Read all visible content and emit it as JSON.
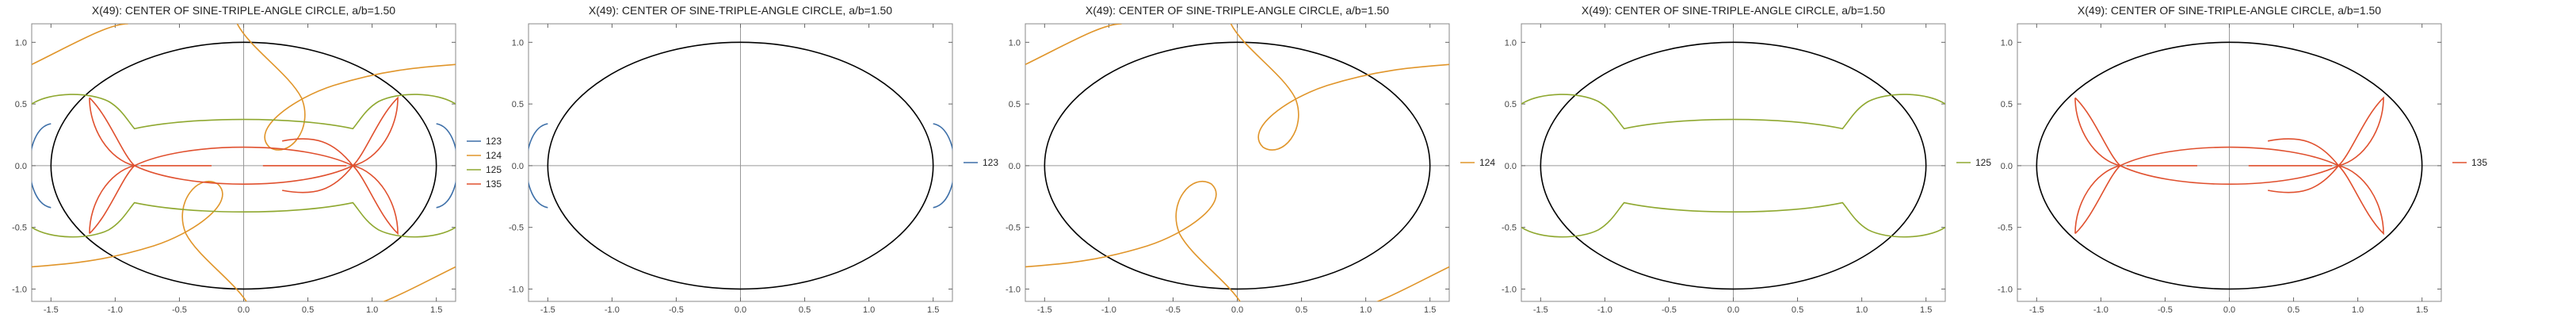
{
  "chart_data": [
    {
      "type": "line",
      "title": "X(49): CENTER OF SINE-TRIPLE-ANGLE CIRCLE, a/b=1.50",
      "xlim": [
        -1.65,
        1.65
      ],
      "ylim": [
        -1.1,
        1.15
      ],
      "xticks": [
        -1.5,
        -1.0,
        -0.5,
        0.0,
        0.5,
        1.0,
        1.5
      ],
      "xtick_labels": [
        "-1.5",
        "-1.0",
        "-0.5",
        "0.0",
        "0.5",
        "1.0",
        "1.5"
      ],
      "yticks": [
        -1.0,
        -0.5,
        0.0,
        0.5,
        1.0
      ],
      "ytick_labels": [
        "-1.0",
        "-0.5",
        "0.0",
        "0.5",
        "1.0"
      ],
      "ellipse": {
        "a": 1.5,
        "b": 1.0,
        "color": "#000000"
      },
      "legend_position": "right",
      "series": [
        {
          "name": "123",
          "color": "#3d6fa8"
        },
        {
          "name": "124",
          "color": "#e0952a"
        },
        {
          "name": "125",
          "color": "#8fa830"
        },
        {
          "name": "135",
          "color": "#e0502e"
        }
      ]
    },
    {
      "type": "line",
      "title": "X(49): CENTER OF SINE-TRIPLE-ANGLE CIRCLE, a/b=1.50",
      "xlim": [
        -1.65,
        1.65
      ],
      "ylim": [
        -1.1,
        1.15
      ],
      "xticks": [
        -1.5,
        -1.0,
        -0.5,
        0.0,
        0.5,
        1.0,
        1.5
      ],
      "xtick_labels": [
        "-1.5",
        "-1.0",
        "-0.5",
        "0.0",
        "0.5",
        "1.0",
        "1.5"
      ],
      "yticks": [
        -1.0,
        -0.5,
        0.0,
        0.5,
        1.0
      ],
      "ytick_labels": [
        "-1.0",
        "-0.5",
        "0.0",
        "0.5",
        "1.0"
      ],
      "ellipse": {
        "a": 1.5,
        "b": 1.0,
        "color": "#000000"
      },
      "legend_position": "right",
      "series": [
        {
          "name": "123",
          "color": "#3d6fa8"
        }
      ]
    },
    {
      "type": "line",
      "title": "X(49): CENTER OF SINE-TRIPLE-ANGLE CIRCLE, a/b=1.50",
      "xlim": [
        -1.65,
        1.65
      ],
      "ylim": [
        -1.1,
        1.15
      ],
      "xticks": [
        -1.5,
        -1.0,
        -0.5,
        0.0,
        0.5,
        1.0,
        1.5
      ],
      "xtick_labels": [
        "-1.5",
        "-1.0",
        "-0.5",
        "0.0",
        "0.5",
        "1.0",
        "1.5"
      ],
      "yticks": [
        -1.0,
        -0.5,
        0.0,
        0.5,
        1.0
      ],
      "ytick_labels": [
        "-1.0",
        "-0.5",
        "0.0",
        "0.5",
        "1.0"
      ],
      "ellipse": {
        "a": 1.5,
        "b": 1.0,
        "color": "#000000"
      },
      "legend_position": "right",
      "series": [
        {
          "name": "124",
          "color": "#e0952a"
        }
      ]
    },
    {
      "type": "line",
      "title": "X(49): CENTER OF SINE-TRIPLE-ANGLE CIRCLE, a/b=1.50",
      "xlim": [
        -1.65,
        1.65
      ],
      "ylim": [
        -1.1,
        1.15
      ],
      "xticks": [
        -1.5,
        -1.0,
        -0.5,
        0.0,
        0.5,
        1.0,
        1.5
      ],
      "xtick_labels": [
        "-1.5",
        "-1.0",
        "-0.5",
        "0.0",
        "0.5",
        "1.0",
        "1.5"
      ],
      "yticks": [
        -1.0,
        -0.5,
        0.0,
        0.5,
        1.0
      ],
      "ytick_labels": [
        "-1.0",
        "-0.5",
        "0.0",
        "0.5",
        "1.0"
      ],
      "ellipse": {
        "a": 1.5,
        "b": 1.0,
        "color": "#000000"
      },
      "legend_position": "right",
      "series": [
        {
          "name": "125",
          "color": "#8fa830"
        }
      ]
    },
    {
      "type": "line",
      "title": "X(49): CENTER OF SINE-TRIPLE-ANGLE CIRCLE, a/b=1.50",
      "xlim": [
        -1.65,
        1.65
      ],
      "ylim": [
        -1.1,
        1.15
      ],
      "xticks": [
        -1.5,
        -1.0,
        -0.5,
        0.0,
        0.5,
        1.0,
        1.5
      ],
      "xtick_labels": [
        "-1.5",
        "-1.0",
        "-0.5",
        "0.0",
        "0.5",
        "1.0",
        "1.5"
      ],
      "yticks": [
        -1.0,
        -0.5,
        0.0,
        0.5,
        1.0
      ],
      "ytick_labels": [
        "-1.0",
        "-0.5",
        "0.0",
        "0.5",
        "1.0"
      ],
      "ellipse": {
        "a": 1.5,
        "b": 1.0,
        "color": "#000000"
      },
      "legend_position": "right",
      "series": [
        {
          "name": "135",
          "color": "#e0502e"
        }
      ]
    }
  ]
}
